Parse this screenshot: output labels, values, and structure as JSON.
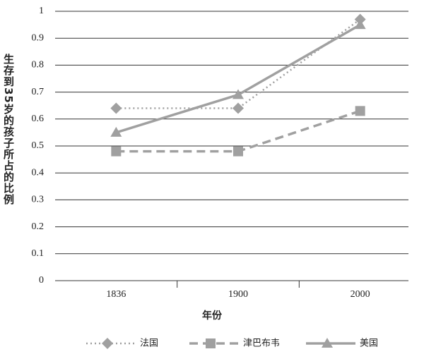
{
  "chart_data": {
    "type": "line",
    "y_label": "生存到35岁的孩子所占的比例",
    "x_label": "年份",
    "categories": [
      "1836",
      "1900",
      "2000"
    ],
    "series": [
      {
        "name": "法国",
        "color": "#a0a0a0",
        "line_style": "dotted",
        "marker": "diamond",
        "values": [
          0.64,
          0.64,
          0.97
        ]
      },
      {
        "name": "津巴布韦",
        "color": "#a0a0a0",
        "line_style": "dashed",
        "marker": "square",
        "values": [
          0.48,
          0.48,
          0.63
        ]
      },
      {
        "name": "美国",
        "color": "#a0a0a0",
        "line_style": "solid",
        "marker": "triangle",
        "values": [
          0.55,
          0.69,
          0.95
        ]
      }
    ],
    "ylim": [
      0,
      1
    ],
    "yticks": [
      0,
      0.1,
      0.2,
      0.3,
      0.4,
      0.5,
      0.6,
      0.7,
      0.8,
      0.9,
      1
    ],
    "grid": true,
    "legend": "bottom"
  }
}
